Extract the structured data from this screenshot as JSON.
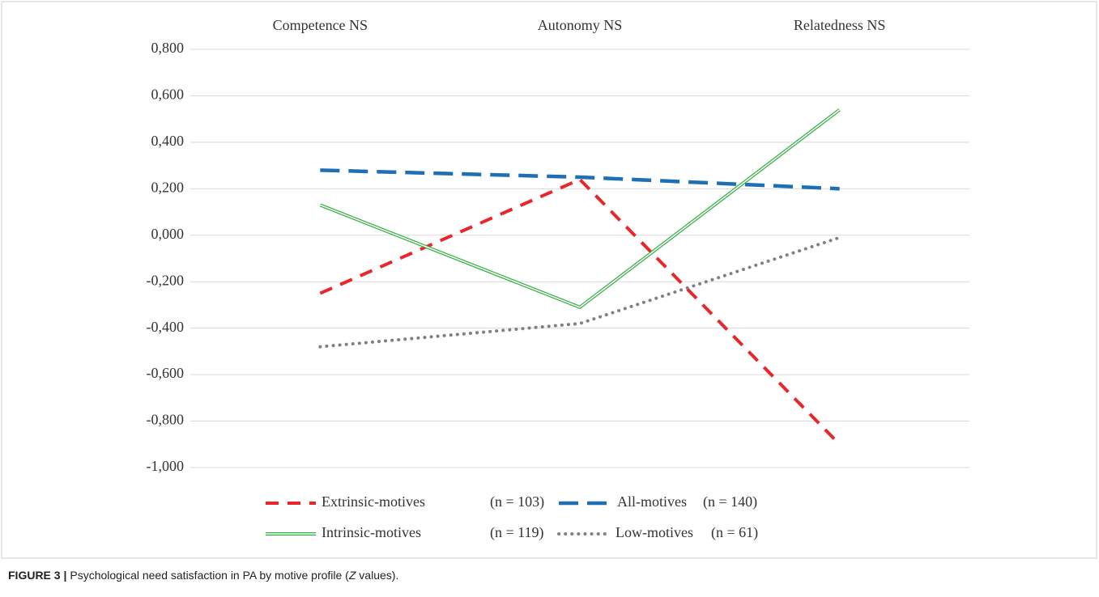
{
  "chart_data": {
    "type": "line",
    "categories": [
      "Competence NS",
      "Autonomy NS",
      "Relatedness NS"
    ],
    "ylim": [
      -1.0,
      0.8
    ],
    "yticks": [
      {
        "value": 0.8,
        "label": "0,800"
      },
      {
        "value": 0.6,
        "label": "0,600"
      },
      {
        "value": 0.4,
        "label": "0,400"
      },
      {
        "value": 0.2,
        "label": "0,200"
      },
      {
        "value": 0,
        "label": "0,000"
      },
      {
        "value": -0.2,
        "label": "-0,200"
      },
      {
        "value": -0.4,
        "label": "-0,400"
      },
      {
        "value": -0.6,
        "label": "-0,600"
      },
      {
        "value": -0.8,
        "label": "-0,800"
      },
      {
        "value": -1.0,
        "label": "-1,000"
      }
    ],
    "grid": true,
    "legend": "bottom",
    "series": [
      {
        "name": "Extrinsic-motives",
        "n_label": "(n = 103)",
        "color": "#e8262b",
        "style": "dashed",
        "values": [
          -0.25,
          0.24,
          -0.9
        ]
      },
      {
        "name": "All-motives",
        "n_label": "(n = 140)",
        "color": "#1f6fb5",
        "style": "long-dashed",
        "values": [
          0.28,
          0.25,
          0.2
        ]
      },
      {
        "name": "Intrinsic-motives",
        "n_label": "(n = 119)",
        "color": "#2eae3e",
        "style": "double",
        "values": [
          0.13,
          -0.31,
          0.54
        ]
      },
      {
        "name": "Low-motives",
        "n_label": "(n = 61)",
        "color": "#808080",
        "style": "dotted",
        "values": [
          -0.48,
          -0.38,
          -0.01
        ]
      }
    ],
    "caption": {
      "label": "FIGURE 3 |",
      "text_before": "Psychological need satisfaction in PA by motive profile (",
      "italic": "Z",
      "text_after": " values)."
    }
  }
}
